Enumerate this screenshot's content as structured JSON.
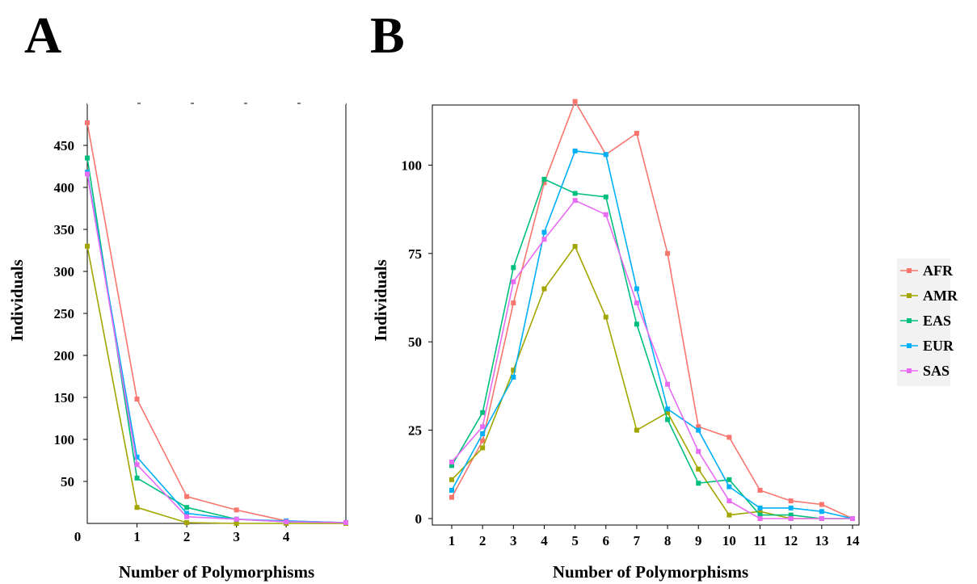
{
  "colors": {
    "AFR": "#f8766d",
    "AMR": "#a3a500",
    "EAS": "#00bf7d",
    "EUR": "#00b0f6",
    "SAS": "#e76bf3"
  },
  "legend": {
    "placement": "right",
    "entries": [
      "AFR",
      "AMR",
      "EAS",
      "EUR",
      "SAS"
    ]
  },
  "chart_data": [
    {
      "panel": "A",
      "type": "line",
      "xlabel": "Number of Polymorphisms",
      "ylabel": "Individuals",
      "xlim": [
        0,
        5.2
      ],
      "ylim": [
        0,
        500
      ],
      "xticks": [
        0,
        1,
        2,
        3,
        4
      ],
      "yticks": [
        50,
        100,
        150,
        200,
        250,
        300,
        350,
        400,
        450
      ],
      "zero_label": "0",
      "grid": false,
      "x": [
        0,
        1,
        2,
        3,
        4,
        5.2
      ],
      "series": [
        {
          "name": "AFR",
          "values": [
            477,
            148,
            32,
            16,
            3,
            1
          ]
        },
        {
          "name": "AMR",
          "values": [
            330,
            19,
            1,
            0,
            0,
            0
          ]
        },
        {
          "name": "EAS",
          "values": [
            435,
            54,
            19,
            5,
            2,
            1
          ]
        },
        {
          "name": "EUR",
          "values": [
            418,
            79,
            12,
            5,
            3,
            1
          ]
        },
        {
          "name": "SAS",
          "values": [
            416,
            70,
            8,
            5,
            2,
            1
          ]
        }
      ]
    },
    {
      "panel": "B",
      "type": "line",
      "xlabel": "Number of Polymorphisms",
      "ylabel": "Individuals",
      "xlim": [
        1,
        14
      ],
      "ylim": [
        0,
        117
      ],
      "xticks": [
        1,
        2,
        3,
        4,
        5,
        6,
        7,
        8,
        9,
        10,
        11,
        12,
        13,
        14
      ],
      "yticks": [
        0,
        25,
        50,
        75,
        100
      ],
      "grid": false,
      "x": [
        1,
        2,
        3,
        4,
        5,
        6,
        7,
        8,
        9,
        10,
        11,
        12,
        13,
        14
      ],
      "series": [
        {
          "name": "AFR",
          "values": [
            6,
            22,
            61,
            95,
            118,
            103,
            109,
            75,
            26,
            23,
            8,
            5,
            4,
            0
          ]
        },
        {
          "name": "AMR",
          "values": [
            11,
            20,
            42,
            65,
            77,
            57,
            25,
            30,
            14,
            1,
            2,
            0,
            0,
            0
          ]
        },
        {
          "name": "EAS",
          "values": [
            15,
            30,
            71,
            96,
            92,
            91,
            55,
            28,
            10,
            11,
            1,
            1,
            0,
            0
          ]
        },
        {
          "name": "EUR",
          "values": [
            8,
            24,
            40,
            81,
            104,
            103,
            65,
            31,
            25,
            9,
            3,
            3,
            2,
            0
          ]
        },
        {
          "name": "SAS",
          "values": [
            16,
            26,
            67,
            79,
            90,
            86,
            61,
            38,
            19,
            5,
            0,
            0,
            0,
            0
          ]
        }
      ]
    }
  ]
}
